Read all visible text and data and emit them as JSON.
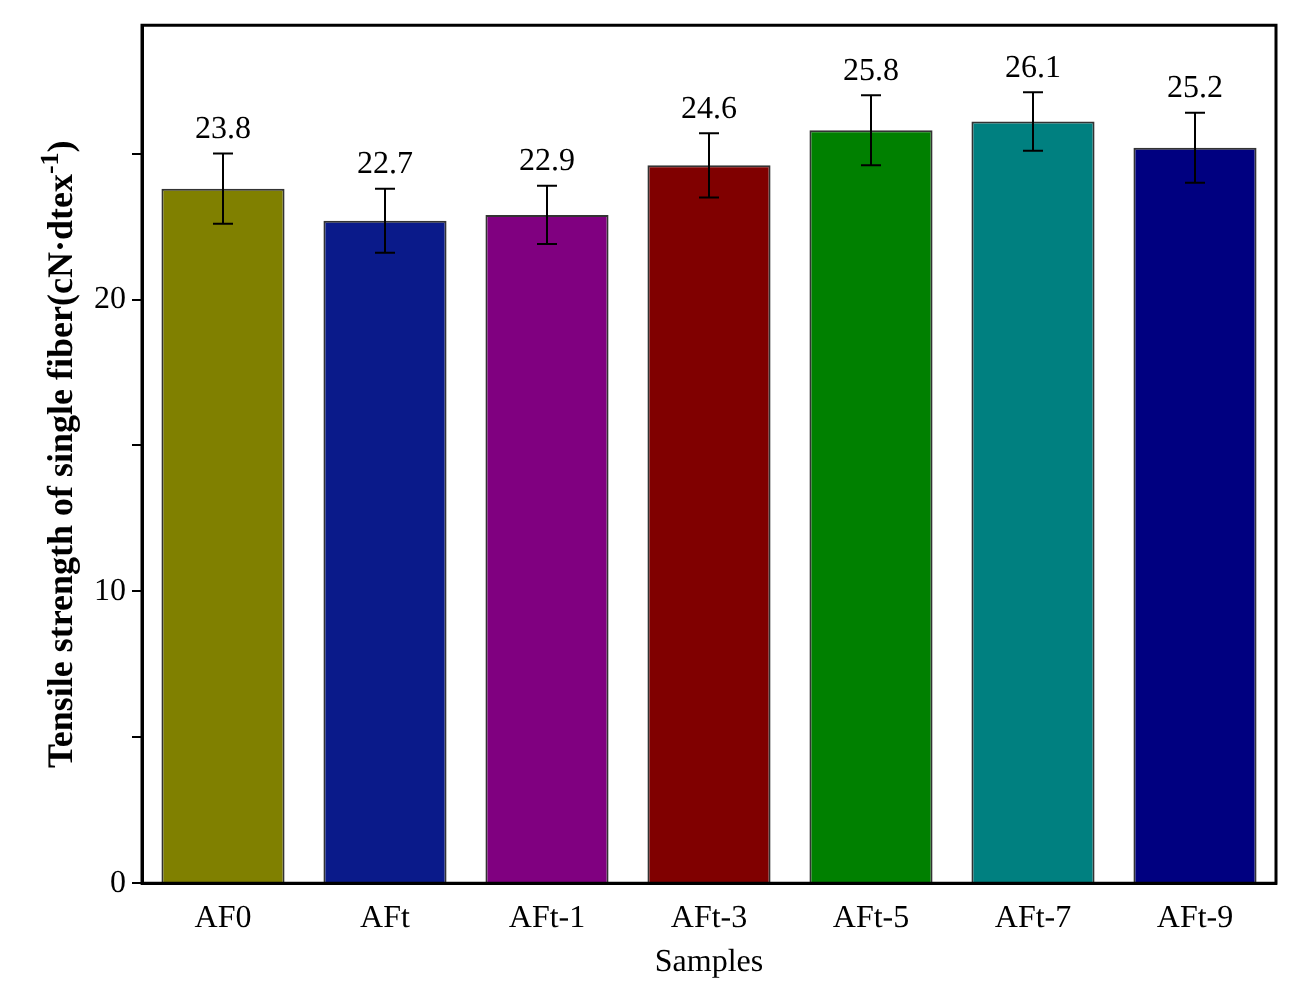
{
  "chart_data": {
    "type": "bar",
    "xlabel": "Samples",
    "ylabel": "Tensile strength of single fiber(cN·dtex$^{-1}$)",
    "categories": [
      "AF0",
      "AFt",
      "AFt-1",
      "AFt-3",
      "AFt-5",
      "AFt-7",
      "AFt-9"
    ],
    "values": [
      23.8,
      22.7,
      22.9,
      24.6,
      25.8,
      26.1,
      25.2
    ],
    "colors": [
      "#808000",
      "#0a1a8a",
      "#800080",
      "#800000",
      "#008000",
      "#008080",
      "#000080"
    ],
    "errors": [
      1.2,
      1.1,
      1.0,
      1.1,
      1.2,
      1.0,
      1.2
    ],
    "ylim": [
      0,
      29.4
    ],
    "yticks": [
      0,
      {
        "value": 5,
        "label": null
      },
      10,
      {
        "value": 15,
        "label": null
      },
      20,
      {
        "value": 25,
        "label": null
      }
    ],
    "data_labels": true,
    "grid": false,
    "legend": false
  }
}
